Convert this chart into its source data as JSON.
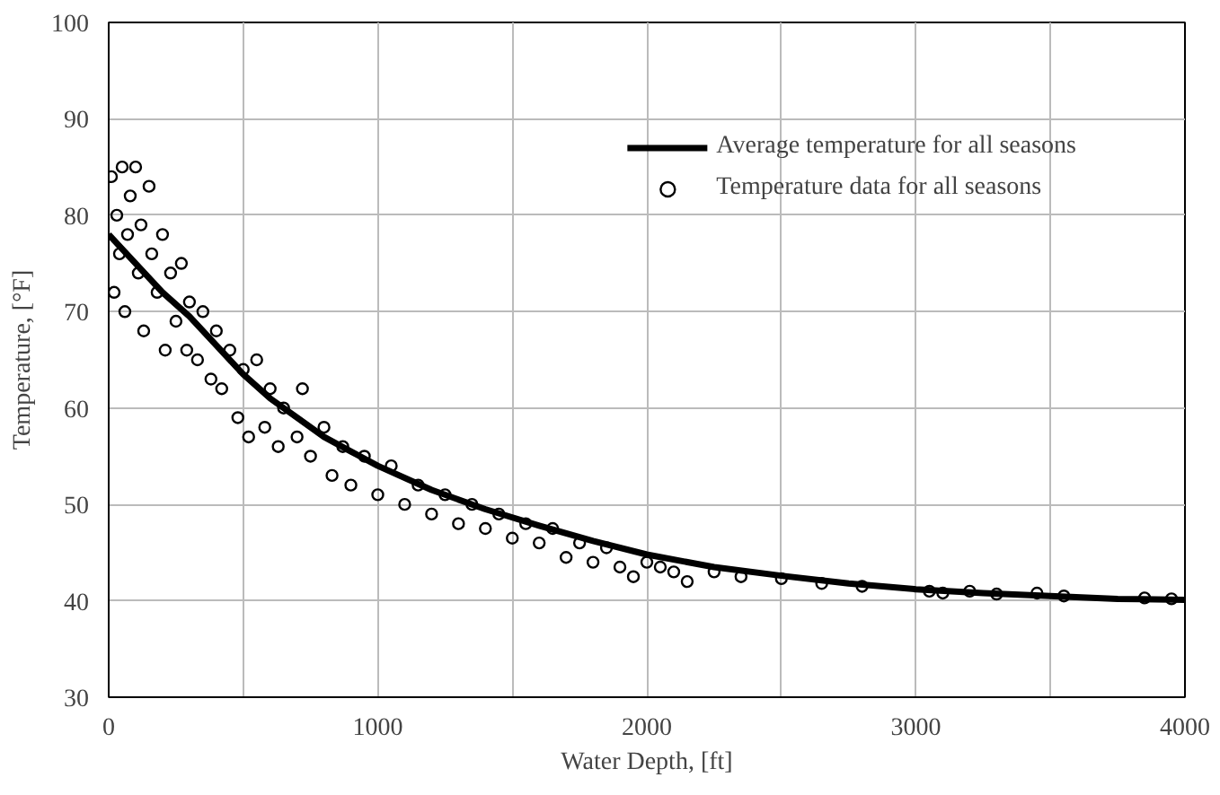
{
  "chart_data": {
    "type": "scatter",
    "xlabel": "Water Depth, [ft]",
    "ylabel": "Temperature, [°F]",
    "xlim": [
      0,
      4000
    ],
    "ylim": [
      30,
      100
    ],
    "xticks": [
      0,
      {
        "value": 500,
        "label": null
      },
      1000,
      {
        "value": 1500,
        "label": null
      },
      2000,
      {
        "value": 2500,
        "label": null
      },
      3000,
      {
        "value": 3500,
        "label": null
      },
      4000
    ],
    "yticks": [
      30,
      40,
      50,
      60,
      70,
      80,
      90,
      100
    ],
    "grid": true,
    "legend": "top right",
    "series": [
      {
        "name": "Average temperature for all seasons",
        "type": "line",
        "color": "#000000",
        "line_style": "solid",
        "x": [
          0,
          100,
          200,
          300,
          400,
          500,
          600,
          700,
          800,
          900,
          1000,
          1200,
          1400,
          1600,
          1800,
          2000,
          2250,
          2500,
          2750,
          3000,
          3250,
          3500,
          3750,
          4000
        ],
        "values": [
          78,
          75,
          72,
          69.5,
          66.5,
          63.5,
          61,
          59,
          57,
          55.5,
          54,
          51.5,
          49.5,
          47.8,
          46.2,
          44.8,
          43.5,
          42.6,
          41.8,
          41.2,
          40.8,
          40.5,
          40.2,
          40.1
        ]
      },
      {
        "name": "Temperature data for all seasons",
        "color": "#000000",
        "marker": "circle",
        "x": [
          10,
          20,
          30,
          40,
          50,
          60,
          70,
          80,
          100,
          110,
          120,
          130,
          150,
          160,
          180,
          200,
          210,
          230,
          250,
          270,
          290,
          300,
          330,
          350,
          380,
          400,
          420,
          450,
          480,
          500,
          520,
          550,
          580,
          600,
          630,
          650,
          700,
          720,
          750,
          800,
          830,
          870,
          900,
          950,
          1000,
          1050,
          1100,
          1150,
          1200,
          1250,
          1300,
          1350,
          1400,
          1450,
          1500,
          1550,
          1600,
          1650,
          1700,
          1750,
          1800,
          1850,
          1900,
          1950,
          2000,
          2050,
          2100,
          2150,
          2250,
          2350,
          2500,
          2650,
          2800,
          3050,
          3100,
          3200,
          3300,
          3450,
          3550,
          3850,
          3950
        ],
        "values": [
          84,
          72,
          80,
          76,
          85,
          70,
          78,
          82,
          85,
          74,
          79,
          68,
          83,
          76,
          72,
          78,
          66,
          74,
          69,
          75,
          66,
          71,
          65,
          70,
          63,
          68,
          62,
          66,
          59,
          64,
          57,
          65,
          58,
          62,
          56,
          60,
          57,
          62,
          55,
          58,
          53,
          56,
          52,
          55,
          51,
          54,
          50,
          52,
          49,
          51,
          48,
          50,
          47.5,
          49,
          46.5,
          48,
          46,
          47.5,
          44.5,
          46,
          44,
          45.5,
          43.5,
          42.5,
          44,
          43.5,
          43,
          42,
          43,
          42.5,
          42.3,
          41.8,
          41.5,
          41,
          40.8,
          41,
          40.7,
          40.8,
          40.5,
          40.3,
          40.2
        ]
      }
    ]
  }
}
